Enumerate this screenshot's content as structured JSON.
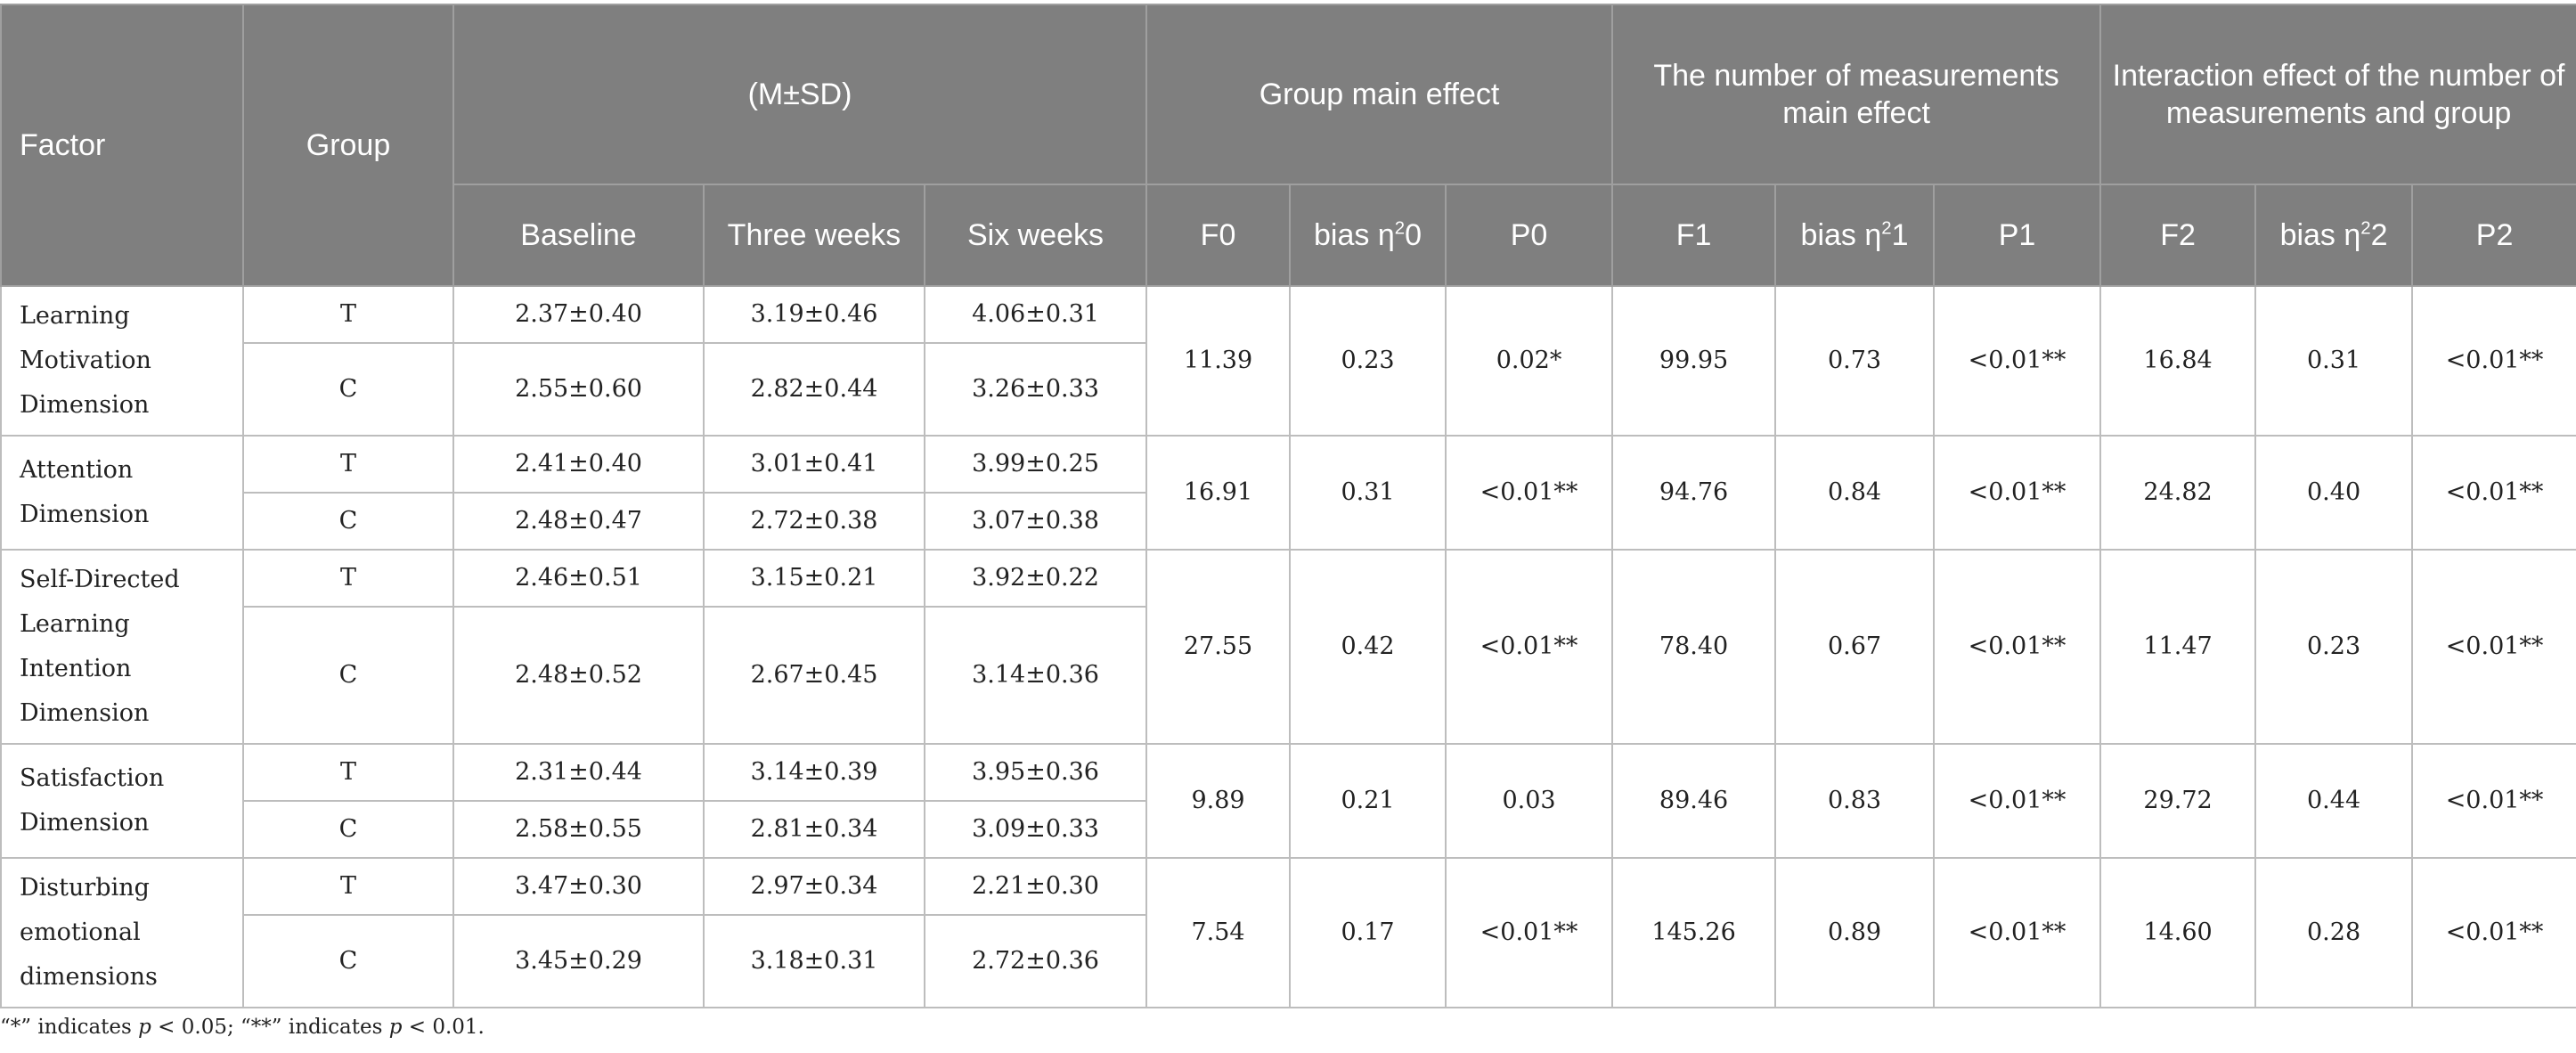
{
  "table": {
    "headers": {
      "factor": "Factor",
      "group": "Group",
      "msd": "(M±SD)",
      "group_main_effect": "Group main effect",
      "measurements_main_effect": "The number of measurements main effect",
      "interaction_effect": "Interaction effect of the number of measurements and group",
      "baseline": "Baseline",
      "three_weeks": "Three weeks",
      "six_weeks": "Six weeks",
      "f0": "F0",
      "eta0_prefix": "bias η",
      "eta0_sup": "2",
      "eta0_suffix": "0",
      "p0": "P0",
      "f1": "F1",
      "eta1_prefix": "bias η",
      "eta1_sup": "2",
      "eta1_suffix": "1",
      "p1": "P1",
      "f2": "F2",
      "eta2_prefix": "bias η",
      "eta2_sup": "2",
      "eta2_suffix": "2",
      "p2": "P2"
    },
    "factors": [
      {
        "name": "Learning Motivation Dimension",
        "f0": "11.39",
        "eta0": "0.23",
        "p0": "0.02*",
        "f1": "99.95",
        "eta1": "0.73",
        "p1": "<0.01**",
        "f2": "16.84",
        "eta2": "0.31",
        "p2": "<0.01**",
        "rows": [
          {
            "group": "T",
            "baseline": "2.37±0.40",
            "three_weeks": "3.19±0.46",
            "six_weeks": "4.06±0.31"
          },
          {
            "group": "C",
            "baseline": "2.55±0.60",
            "three_weeks": "2.82±0.44",
            "six_weeks": "3.26±0.33"
          }
        ]
      },
      {
        "name": "Attention Dimension",
        "f0": "16.91",
        "eta0": "0.31",
        "p0": "<0.01**",
        "f1": "94.76",
        "eta1": "0.84",
        "p1": "<0.01**",
        "f2": "24.82",
        "eta2": "0.40",
        "p2": "<0.01**",
        "rows": [
          {
            "group": "T",
            "baseline": "2.41±0.40",
            "three_weeks": "3.01±0.41",
            "six_weeks": "3.99±0.25"
          },
          {
            "group": "C",
            "baseline": "2.48±0.47",
            "three_weeks": "2.72±0.38",
            "six_weeks": "3.07±0.38"
          }
        ]
      },
      {
        "name": "Self-Directed Learning Intention Dimension",
        "f0": "27.55",
        "eta0": "0.42",
        "p0": "<0.01**",
        "f1": "78.40",
        "eta1": "0.67",
        "p1": "<0.01**",
        "f2": "11.47",
        "eta2": "0.23",
        "p2": "<0.01**",
        "rows": [
          {
            "group": "T",
            "baseline": "2.46±0.51",
            "three_weeks": "3.15±0.21",
            "six_weeks": "3.92±0.22"
          },
          {
            "group": "C",
            "baseline": "2.48±0.52",
            "three_weeks": "2.67±0.45",
            "six_weeks": "3.14±0.36"
          }
        ]
      },
      {
        "name": "Satisfaction Dimension",
        "f0": "9.89",
        "eta0": "0.21",
        "p0": "0.03",
        "f1": "89.46",
        "eta1": "0.83",
        "p1": "<0.01**",
        "f2": "29.72",
        "eta2": "0.44",
        "p2": "<0.01**",
        "rows": [
          {
            "group": "T",
            "baseline": "2.31±0.44",
            "three_weeks": "3.14±0.39",
            "six_weeks": "3.95±0.36"
          },
          {
            "group": "C",
            "baseline": "2.58±0.55",
            "three_weeks": "2.81±0.34",
            "six_weeks": "3.09±0.33"
          }
        ]
      },
      {
        "name": "Disturbing emotional dimensions",
        "f0": "7.54",
        "eta0": "0.17",
        "p0": "<0.01**",
        "f1": "145.26",
        "eta1": "0.89",
        "p1": "<0.01**",
        "f2": "14.60",
        "eta2": "0.28",
        "p2": "<0.01**",
        "rows": [
          {
            "group": "T",
            "baseline": "3.47±0.30",
            "three_weeks": "2.97±0.34",
            "six_weeks": "2.21±0.30"
          },
          {
            "group": "C",
            "baseline": "3.45±0.29",
            "three_weeks": "3.18±0.31",
            "six_weeks": "2.72±0.36"
          }
        ]
      }
    ]
  },
  "footnote": {
    "part1": "“*” indicates ",
    "var1": "p",
    "part2": " < 0.05; “**” indicates ",
    "var2": "p",
    "part3": " < 0.01."
  }
}
